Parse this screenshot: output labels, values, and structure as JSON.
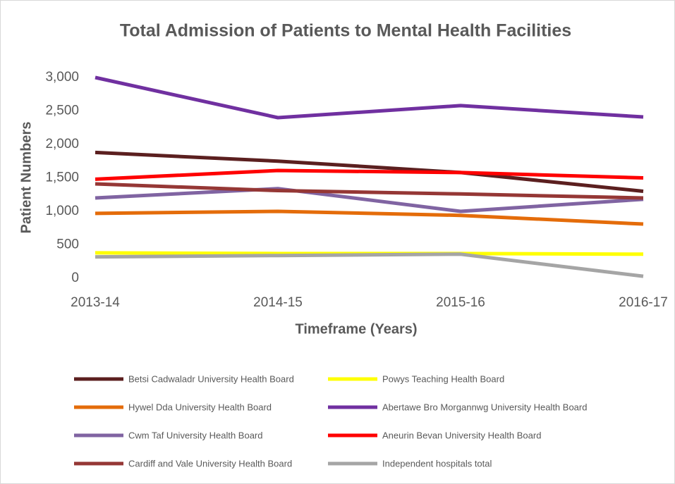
{
  "chart_data": {
    "type": "line",
    "title": "Total Admission of Patients to Mental Health Facilities",
    "x_label": "Timeframe (Years)",
    "y_label": "Patient Numbers",
    "categories": [
      "2013-14",
      "2014-15",
      "2015-16",
      "2016-17"
    ],
    "series": [
      {
        "name": "Betsi Cadwaladr University Health Board",
        "color": "#5b1f1f",
        "values": [
          1880,
          1750,
          1580,
          1300
        ]
      },
      {
        "name": "Powys Teaching Health Board",
        "color": "#ffff00",
        "values": [
          380,
          370,
          370,
          360
        ]
      },
      {
        "name": "Hywel Dda University Health Board",
        "color": "#e46c0a",
        "values": [
          970,
          1000,
          940,
          810
        ]
      },
      {
        "name": "Abertawe Bro Morgannwg University Health Board",
        "color": "#7030a0",
        "values": [
          3000,
          2400,
          2580,
          2410
        ]
      },
      {
        "name": "Cwm Taf University Health Board",
        "color": "#8064a2",
        "values": [
          1200,
          1340,
          1000,
          1180
        ]
      },
      {
        "name": "Aneurin Bevan University Health Board",
        "color": "#ff0000",
        "values": [
          1480,
          1610,
          1580,
          1500
        ]
      },
      {
        "name": "Cardiff and Vale University Health Board",
        "color": "#953735",
        "values": [
          1410,
          1310,
          1260,
          1200
        ]
      },
      {
        "name": "Independent hospitals total",
        "color": "#a5a5a5",
        "values": [
          320,
          340,
          360,
          30
        ]
      }
    ],
    "ylim": [
      0,
      3000
    ],
    "yticks": [
      0,
      500,
      {
        "value": 1000,
        "label": "1,000"
      },
      {
        "value": 1500,
        "label": "1,500"
      },
      {
        "value": 2000,
        "label": "2,000"
      },
      {
        "value": 2500,
        "label": "2,500"
      },
      {
        "value": 3000,
        "label": "3,000"
      }
    ],
    "grid": false,
    "legend": "bottom"
  }
}
